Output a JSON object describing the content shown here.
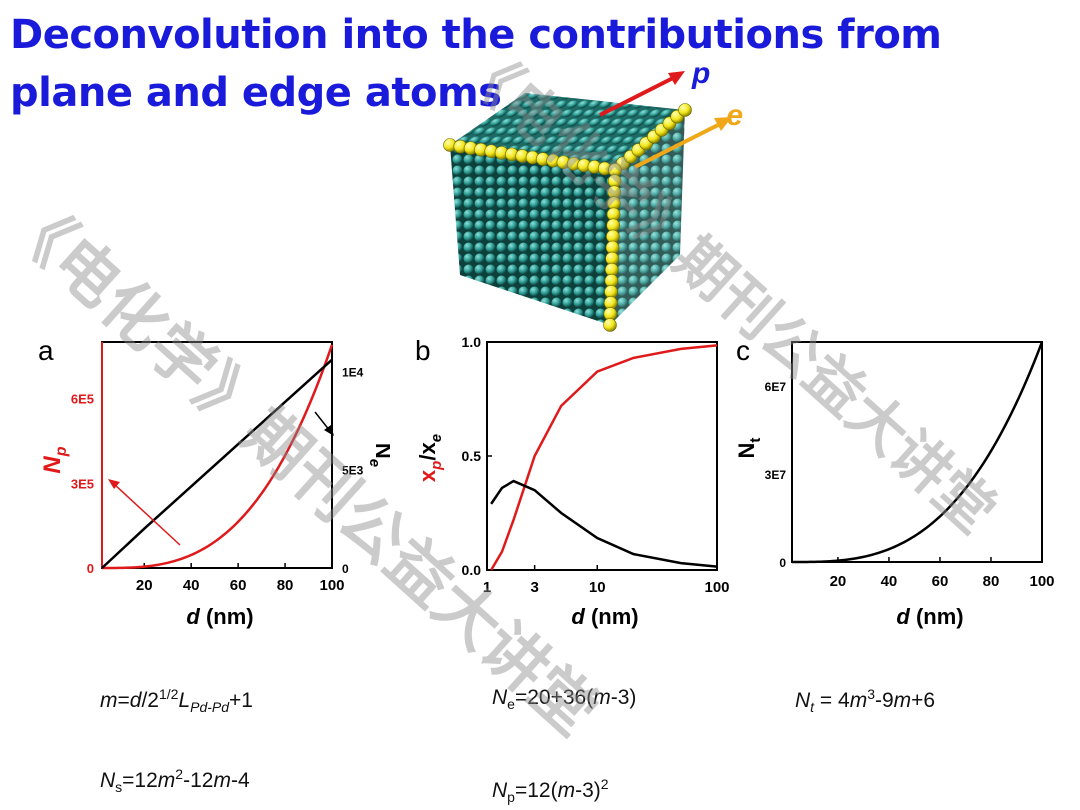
{
  "title": "Deconvolution into the contributions from plane and edge atoms",
  "cube": {
    "label_p": "p",
    "label_e": "e",
    "colors": {
      "atom": "#2e9e96",
      "edge": "#f2e61a",
      "arrow_p": "#e0191a",
      "arrow_e": "#f0a818"
    }
  },
  "panels": {
    "a": {
      "letter": "a",
      "xlabel_italic": "d",
      "xlabel_unit": " (nm)",
      "ylabel_left": "N",
      "ylabel_left_sub": "p",
      "ylabel_right": "N",
      "ylabel_right_sub": "e"
    },
    "b": {
      "letter": "b",
      "xlabel_italic": "d",
      "xlabel_unit": " (nm)",
      "ylabel": "x",
      "ylabel_sub1": "p",
      "ylabel_sep": "/x",
      "ylabel_sub2": "e"
    },
    "c": {
      "letter": "c",
      "xlabel_italic": "d",
      "xlabel_unit": " (nm)",
      "ylabel": "N",
      "ylabel_sub": "t"
    }
  },
  "chart_data": [
    {
      "type": "line",
      "panel": "a",
      "x": [
        2,
        20,
        40,
        60,
        80,
        100
      ],
      "xlim": [
        2,
        100
      ],
      "xticks": [
        "20",
        "40",
        "60",
        "80",
        "100"
      ],
      "y_left": {
        "ticks": [
          "0",
          "3E5",
          "6E5"
        ],
        "tick_values": [
          0,
          300000,
          600000
        ],
        "lim": [
          0,
          800000
        ]
      },
      "y_right": {
        "ticks": [
          "0",
          "5E3",
          "1E4"
        ],
        "tick_values": [
          0,
          5000,
          10000
        ],
        "lim": [
          0,
          11500
        ]
      },
      "series": [
        {
          "axis": "left",
          "color": "#e0191a",
          "values": [
            0,
            6000,
            48000,
            162000,
            384000,
            790000
          ]
        },
        {
          "axis": "right",
          "color": "#000000",
          "values": [
            0,
            2000,
            4150,
            6300,
            8450,
            10600
          ]
        }
      ]
    },
    {
      "type": "line",
      "panel": "b",
      "xscale": "log",
      "xlim": [
        1.2,
        100
      ],
      "xticks": [
        "1",
        "3",
        "10",
        "100"
      ],
      "yticks": [
        "0.0",
        "0.5",
        "1.0"
      ],
      "ylim": [
        0,
        1.0
      ],
      "series": [
        {
          "color": "#e0191a",
          "x": [
            1.3,
            1.6,
            2,
            3,
            5,
            10,
            20,
            50,
            100
          ],
          "values": [
            0,
            0.08,
            0.22,
            0.5,
            0.72,
            0.87,
            0.93,
            0.97,
            0.985
          ]
        },
        {
          "color": "#000000",
          "x": [
            1.3,
            1.6,
            2,
            3,
            5,
            10,
            20,
            50,
            100
          ],
          "values": [
            0.29,
            0.36,
            0.39,
            0.35,
            0.25,
            0.14,
            0.07,
            0.03,
            0.015
          ]
        }
      ]
    },
    {
      "type": "line",
      "panel": "c",
      "x": [
        2,
        20,
        40,
        60,
        80,
        100
      ],
      "xlim": [
        2,
        100
      ],
      "xticks": [
        "20",
        "40",
        "60",
        "80",
        "100"
      ],
      "yticks": [
        "0",
        "3E7",
        "6E7"
      ],
      "ytick_values": [
        0,
        30000000,
        60000000
      ],
      "ylim": [
        0,
        75000000
      ],
      "series": [
        {
          "color": "#000000",
          "values": [
            0,
            600000,
            4800000,
            16200000,
            38400000,
            75000000
          ]
        }
      ]
    }
  ],
  "formulas": {
    "f1": {
      "a": "m",
      "b": "=",
      "c": "d",
      "d": "/2",
      "e": "1/2",
      "f": "L",
      "g": "Pd-Pd",
      "h": "+1"
    },
    "f2": {
      "a": "N",
      "b": "s",
      "c": "=12",
      "d": "m",
      "e": "2",
      "f": "-12",
      "g": "m",
      "h": "-4"
    },
    "f3": {
      "a": "N",
      "b": "e",
      "c": "=20+36(",
      "d": "m",
      "e": "-3)"
    },
    "f4": {
      "a": "N",
      "b": "p",
      "c": "=12(",
      "d": "m",
      "e": "-3)",
      "f": "2"
    },
    "f5": {
      "a": "N",
      "b": "t",
      "c": " = 4",
      "d": "m",
      "e": "3",
      "f": "-9",
      "g": "m",
      "h": "+6"
    }
  },
  "watermark": "《电化学》期刊公益大讲堂"
}
